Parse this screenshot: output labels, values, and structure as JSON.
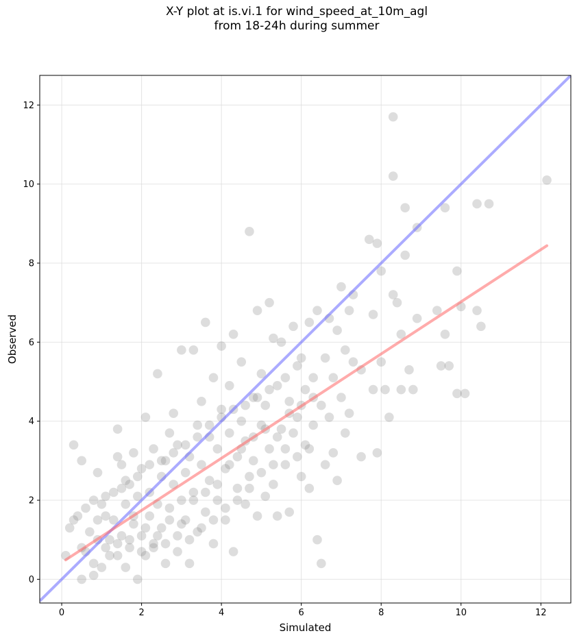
{
  "chart_data": {
    "type": "scatter",
    "title_line1": "X-Y plot at is.vi.1 for wind_speed_at_10m_agl",
    "title_line2": "from 18-24h during summer",
    "xlabel": "Simulated",
    "ylabel": "Observed",
    "xlim": [
      -0.55,
      12.75
    ],
    "ylim": [
      -0.6,
      12.75
    ],
    "x_ticks": [
      0,
      2,
      4,
      6,
      8,
      10,
      12
    ],
    "y_ticks": [
      0,
      2,
      4,
      6,
      8,
      10,
      12
    ],
    "grid": true,
    "marker_color": "#808080",
    "identity_line": {
      "color": "#6666ff",
      "x": [
        -0.55,
        12.75
      ],
      "y": [
        -0.55,
        12.75
      ]
    },
    "fit_line": {
      "color": "#ff6666",
      "x": [
        0.1,
        12.15
      ],
      "y": [
        0.49,
        8.44
      ]
    },
    "points": [
      [
        0.1,
        0.6
      ],
      [
        0.2,
        1.3
      ],
      [
        0.3,
        1.5
      ],
      [
        0.3,
        3.4
      ],
      [
        0.4,
        1.6
      ],
      [
        0.5,
        3.0
      ],
      [
        0.5,
        0.0
      ],
      [
        0.5,
        0.8
      ],
      [
        0.6,
        1.8
      ],
      [
        0.6,
        0.7
      ],
      [
        0.7,
        1.2
      ],
      [
        0.8,
        2.0
      ],
      [
        0.8,
        0.4
      ],
      [
        0.8,
        0.1
      ],
      [
        0.9,
        2.7
      ],
      [
        0.9,
        1.0
      ],
      [
        1.0,
        0.3
      ],
      [
        1.1,
        1.6
      ],
      [
        1.1,
        2.1
      ],
      [
        1.2,
        0.6
      ],
      [
        1.3,
        1.5
      ],
      [
        1.4,
        3.8
      ],
      [
        1.4,
        3.1
      ],
      [
        1.4,
        0.6
      ],
      [
        1.5,
        2.3
      ],
      [
        1.5,
        2.9
      ],
      [
        1.6,
        0.3
      ],
      [
        1.6,
        1.9
      ],
      [
        1.7,
        0.8
      ],
      [
        1.7,
        2.4
      ],
      [
        1.8,
        3.2
      ],
      [
        1.8,
        1.4
      ],
      [
        1.9,
        0.0
      ],
      [
        1.9,
        2.1
      ],
      [
        2.0,
        2.8
      ],
      [
        2.0,
        1.1
      ],
      [
        2.1,
        4.1
      ],
      [
        2.1,
        0.6
      ],
      [
        2.2,
        1.6
      ],
      [
        2.2,
        2.2
      ],
      [
        2.3,
        3.3
      ],
      [
        2.3,
        0.9
      ],
      [
        2.4,
        5.2
      ],
      [
        2.4,
        1.9
      ],
      [
        2.5,
        2.6
      ],
      [
        2.5,
        1.3
      ],
      [
        2.6,
        0.4
      ],
      [
        2.6,
        3.0
      ],
      [
        2.7,
        3.7
      ],
      [
        2.7,
        1.8
      ],
      [
        2.8,
        4.2
      ],
      [
        2.8,
        2.4
      ],
      [
        2.9,
        1.1
      ],
      [
        2.9,
        3.4
      ],
      [
        3.0,
        5.8
      ],
      [
        3.0,
        2.0
      ],
      [
        3.1,
        2.7
      ],
      [
        3.1,
        1.5
      ],
      [
        3.2,
        0.4
      ],
      [
        3.2,
        3.1
      ],
      [
        3.3,
        5.8
      ],
      [
        3.3,
        2.2
      ],
      [
        3.4,
        3.9
      ],
      [
        3.4,
        1.2
      ],
      [
        3.5,
        2.9
      ],
      [
        3.5,
        4.5
      ],
      [
        3.6,
        6.5
      ],
      [
        3.6,
        1.7
      ],
      [
        3.7,
        3.6
      ],
      [
        3.7,
        2.5
      ],
      [
        3.8,
        5.1
      ],
      [
        3.8,
        0.9
      ],
      [
        3.9,
        3.3
      ],
      [
        3.9,
        2.0
      ],
      [
        4.0,
        4.3
      ],
      [
        4.0,
        5.9
      ],
      [
        4.1,
        2.8
      ],
      [
        4.1,
        1.5
      ],
      [
        4.2,
        3.7
      ],
      [
        4.2,
        4.9
      ],
      [
        4.3,
        6.2
      ],
      [
        4.3,
        0.7
      ],
      [
        4.4,
        3.1
      ],
      [
        4.4,
        2.3
      ],
      [
        4.5,
        5.5
      ],
      [
        4.5,
        4.0
      ],
      [
        4.6,
        1.9
      ],
      [
        4.6,
        3.5
      ],
      [
        4.7,
        8.8
      ],
      [
        4.7,
        2.6
      ],
      [
        4.8,
        4.6
      ],
      [
        4.8,
        3.0
      ],
      [
        4.9,
        6.8
      ],
      [
        4.9,
        1.6
      ],
      [
        5.0,
        5.2
      ],
      [
        5.0,
        3.9
      ],
      [
        5.1,
        2.1
      ],
      [
        5.1,
        4.4
      ],
      [
        5.2,
        7.0
      ],
      [
        5.2,
        3.3
      ],
      [
        5.3,
        6.1
      ],
      [
        5.3,
        2.4
      ],
      [
        5.4,
        4.9
      ],
      [
        5.4,
        1.6
      ],
      [
        5.5,
        6.0
      ],
      [
        5.5,
        3.8
      ],
      [
        5.6,
        5.1
      ],
      [
        5.6,
        2.9
      ],
      [
        5.7,
        4.5
      ],
      [
        5.7,
        1.7
      ],
      [
        5.8,
        6.4
      ],
      [
        5.8,
        3.7
      ],
      [
        5.9,
        5.4
      ],
      [
        5.9,
        4.1
      ],
      [
        6.0,
        2.6
      ],
      [
        6.0,
        5.6
      ],
      [
        6.1,
        3.4
      ],
      [
        6.1,
        4.8
      ],
      [
        6.2,
        6.5
      ],
      [
        6.2,
        2.3
      ],
      [
        6.3,
        5.1
      ],
      [
        6.3,
        3.9
      ],
      [
        6.4,
        6.8
      ],
      [
        6.4,
        1.0
      ],
      [
        6.5,
        4.4
      ],
      [
        6.5,
        0.4
      ],
      [
        6.6,
        5.6
      ],
      [
        6.6,
        2.9
      ],
      [
        6.7,
        6.6
      ],
      [
        6.7,
        4.1
      ],
      [
        6.8,
        5.1
      ],
      [
        6.8,
        3.2
      ],
      [
        6.9,
        6.3
      ],
      [
        6.9,
        2.5
      ],
      [
        7.0,
        7.4
      ],
      [
        7.0,
        4.6
      ],
      [
        7.1,
        3.7
      ],
      [
        7.1,
        5.8
      ],
      [
        7.2,
        6.8
      ],
      [
        7.2,
        4.2
      ],
      [
        7.3,
        7.2
      ],
      [
        7.3,
        5.5
      ],
      [
        7.5,
        5.3
      ],
      [
        7.5,
        3.1
      ],
      [
        7.7,
        8.6
      ],
      [
        7.8,
        4.8
      ],
      [
        7.8,
        6.7
      ],
      [
        7.9,
        8.5
      ],
      [
        7.9,
        3.2
      ],
      [
        8.0,
        7.8
      ],
      [
        8.0,
        5.5
      ],
      [
        8.1,
        4.8
      ],
      [
        8.2,
        4.1
      ],
      [
        8.3,
        11.7
      ],
      [
        8.3,
        10.2
      ],
      [
        8.3,
        7.2
      ],
      [
        8.4,
        7.0
      ],
      [
        8.5,
        6.2
      ],
      [
        8.5,
        4.8
      ],
      [
        8.6,
        9.4
      ],
      [
        8.6,
        8.2
      ],
      [
        8.7,
        5.3
      ],
      [
        8.8,
        4.8
      ],
      [
        8.9,
        8.9
      ],
      [
        8.9,
        6.6
      ],
      [
        9.4,
        6.8
      ],
      [
        9.5,
        5.4
      ],
      [
        9.6,
        9.4
      ],
      [
        9.6,
        6.2
      ],
      [
        9.7,
        5.4
      ],
      [
        9.9,
        7.8
      ],
      [
        9.9,
        4.7
      ],
      [
        10.0,
        6.9
      ],
      [
        10.1,
        4.7
      ],
      [
        10.4,
        9.5
      ],
      [
        10.4,
        6.8
      ],
      [
        10.5,
        6.4
      ],
      [
        10.7,
        9.5
      ],
      [
        12.15,
        10.1
      ],
      [
        0.9,
        1.5
      ],
      [
        1.2,
        1.0
      ],
      [
        1.5,
        1.1
      ],
      [
        1.8,
        1.6
      ],
      [
        2.1,
        1.3
      ],
      [
        2.4,
        1.1
      ],
      [
        2.7,
        1.5
      ],
      [
        3.0,
        1.4
      ],
      [
        3.3,
        2.0
      ],
      [
        3.6,
        2.2
      ],
      [
        3.9,
        2.4
      ],
      [
        4.2,
        2.9
      ],
      [
        4.5,
        3.3
      ],
      [
        4.8,
        3.6
      ],
      [
        5.1,
        3.8
      ],
      [
        5.4,
        3.6
      ],
      [
        5.7,
        4.2
      ],
      [
        6.0,
        4.4
      ],
      [
        6.3,
        4.6
      ],
      [
        1.0,
        1.9
      ],
      [
        1.3,
        2.2
      ],
      [
        1.6,
        2.5
      ],
      [
        1.9,
        2.6
      ],
      [
        2.2,
        2.9
      ],
      [
        2.5,
        3.0
      ],
      [
        2.8,
        3.2
      ],
      [
        3.1,
        3.4
      ],
      [
        3.4,
        3.6
      ],
      [
        3.7,
        3.9
      ],
      [
        4.0,
        4.1
      ],
      [
        4.3,
        4.3
      ],
      [
        4.6,
        4.4
      ],
      [
        4.9,
        4.6
      ],
      [
        5.2,
        4.8
      ],
      [
        1.1,
        0.8
      ],
      [
        1.4,
        0.9
      ],
      [
        1.7,
        1.0
      ],
      [
        2.0,
        0.7
      ],
      [
        2.3,
        0.8
      ],
      [
        2.6,
        0.9
      ],
      [
        2.9,
        0.7
      ],
      [
        3.2,
        1.0
      ],
      [
        3.5,
        1.3
      ],
      [
        3.8,
        1.5
      ],
      [
        4.1,
        1.8
      ],
      [
        4.4,
        2.0
      ],
      [
        4.7,
        2.3
      ],
      [
        5.0,
        2.7
      ],
      [
        5.3,
        2.9
      ],
      [
        5.6,
        3.3
      ],
      [
        5.9,
        3.1
      ],
      [
        6.2,
        3.3
      ]
    ]
  }
}
